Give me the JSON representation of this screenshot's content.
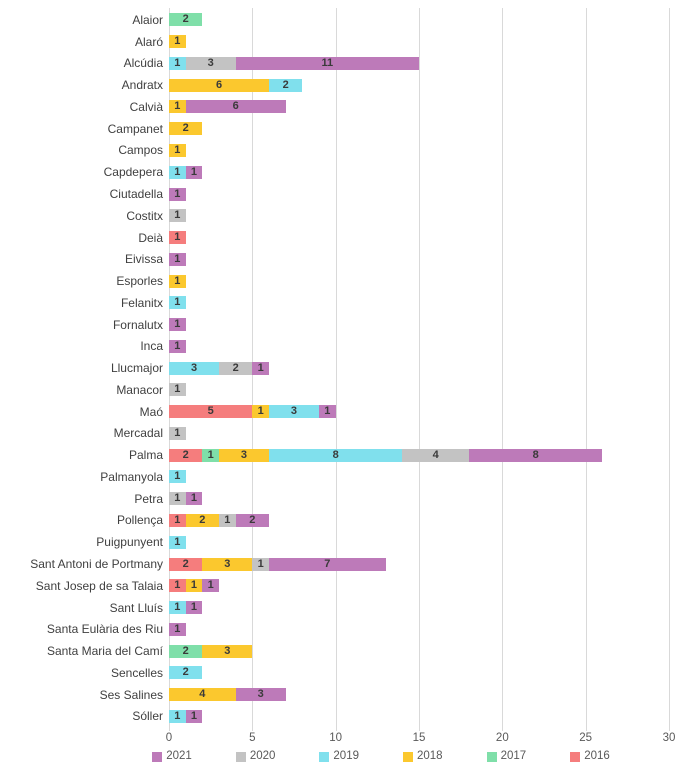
{
  "chart_data": {
    "type": "bar",
    "orientation": "horizontal",
    "stacked": true,
    "title": "",
    "xlabel": "",
    "ylabel": "",
    "xlim": [
      0,
      30
    ],
    "xticks": [
      0,
      5,
      10,
      15,
      20,
      25,
      30
    ],
    "grid": "vertical-only",
    "legend_position": "bottom",
    "gridline_color": "#d9d9d9",
    "value_label_color": "#3a3a3a",
    "category_label_color": "#404040",
    "axis_label_color": "#595959",
    "legend": [
      {
        "label": "2021",
        "color": "#bd7ab9"
      },
      {
        "label": "2020",
        "color": "#c3c3c3"
      },
      {
        "label": "2019",
        "color": "#80e0ed"
      },
      {
        "label": "2018",
        "color": "#fbc82e"
      },
      {
        "label": "2017",
        "color": "#7fdfa9"
      },
      {
        "label": "2016",
        "color": "#f57d7d"
      }
    ],
    "stack_order_left_to_right": [
      "2016",
      "2017",
      "2018",
      "2019",
      "2020",
      "2021"
    ],
    "rows": [
      {
        "category": "Alaior",
        "segments": [
          {
            "year": "2017",
            "value": 2
          }
        ]
      },
      {
        "category": "Alaró",
        "segments": [
          {
            "year": "2018",
            "value": 1
          }
        ]
      },
      {
        "category": "Alcúdia",
        "segments": [
          {
            "year": "2019",
            "value": 1
          },
          {
            "year": "2020",
            "value": 3
          },
          {
            "year": "2021",
            "value": 11
          }
        ]
      },
      {
        "category": "Andratx",
        "segments": [
          {
            "year": "2018",
            "value": 6
          },
          {
            "year": "2019",
            "value": 2
          }
        ]
      },
      {
        "category": "Calvià",
        "segments": [
          {
            "year": "2018",
            "value": 1
          },
          {
            "year": "2021",
            "value": 6
          }
        ]
      },
      {
        "category": "Campanet",
        "segments": [
          {
            "year": "2018",
            "value": 2
          }
        ]
      },
      {
        "category": "Campos",
        "segments": [
          {
            "year": "2018",
            "value": 1
          }
        ]
      },
      {
        "category": "Capdepera",
        "segments": [
          {
            "year": "2019",
            "value": 1
          },
          {
            "year": "2021",
            "value": 1
          }
        ]
      },
      {
        "category": "Ciutadella",
        "segments": [
          {
            "year": "2021",
            "value": 1
          }
        ]
      },
      {
        "category": "Costitx",
        "segments": [
          {
            "year": "2020",
            "value": 1
          }
        ]
      },
      {
        "category": "Deià",
        "segments": [
          {
            "year": "2016",
            "value": 1
          }
        ]
      },
      {
        "category": "Eivissa",
        "segments": [
          {
            "year": "2021",
            "value": 1
          }
        ]
      },
      {
        "category": "Esporles",
        "segments": [
          {
            "year": "2018",
            "value": 1
          }
        ]
      },
      {
        "category": "Felanitx",
        "segments": [
          {
            "year": "2019",
            "value": 1
          }
        ]
      },
      {
        "category": "Fornalutx",
        "segments": [
          {
            "year": "2021",
            "value": 1
          }
        ]
      },
      {
        "category": "Inca",
        "segments": [
          {
            "year": "2021",
            "value": 1
          }
        ]
      },
      {
        "category": "Llucmajor",
        "segments": [
          {
            "year": "2019",
            "value": 3
          },
          {
            "year": "2020",
            "value": 2
          },
          {
            "year": "2021",
            "value": 1
          }
        ]
      },
      {
        "category": "Manacor",
        "segments": [
          {
            "year": "2020",
            "value": 1
          }
        ]
      },
      {
        "category": "Maó",
        "segments": [
          {
            "year": "2016",
            "value": 5
          },
          {
            "year": "2018",
            "value": 1
          },
          {
            "year": "2019",
            "value": 3
          },
          {
            "year": "2021",
            "value": 1
          }
        ]
      },
      {
        "category": "Mercadal",
        "segments": [
          {
            "year": "2020",
            "value": 1
          }
        ]
      },
      {
        "category": "Palma",
        "segments": [
          {
            "year": "2016",
            "value": 2
          },
          {
            "year": "2017",
            "value": 1
          },
          {
            "year": "2018",
            "value": 3
          },
          {
            "year": "2019",
            "value": 8
          },
          {
            "year": "2020",
            "value": 4
          },
          {
            "year": "2021",
            "value": 8
          }
        ]
      },
      {
        "category": "Palmanyola",
        "segments": [
          {
            "year": "2019",
            "value": 1
          }
        ]
      },
      {
        "category": "Petra",
        "segments": [
          {
            "year": "2020",
            "value": 1
          },
          {
            "year": "2021",
            "value": 1
          }
        ]
      },
      {
        "category": "Pollença",
        "segments": [
          {
            "year": "2016",
            "value": 1
          },
          {
            "year": "2018",
            "value": 2
          },
          {
            "year": "2020",
            "value": 1
          },
          {
            "year": "2021",
            "value": 2
          }
        ]
      },
      {
        "category": "Puigpunyent",
        "segments": [
          {
            "year": "2019",
            "value": 1
          }
        ]
      },
      {
        "category": "Sant Antoni de Portmany",
        "segments": [
          {
            "year": "2016",
            "value": 2
          },
          {
            "year": "2018",
            "value": 3
          },
          {
            "year": "2020",
            "value": 1
          },
          {
            "year": "2021",
            "value": 7
          }
        ]
      },
      {
        "category": "Sant Josep de sa Talaia",
        "segments": [
          {
            "year": "2016",
            "value": 1
          },
          {
            "year": "2018",
            "value": 1
          },
          {
            "year": "2021",
            "value": 1
          }
        ]
      },
      {
        "category": "Sant Lluís",
        "segments": [
          {
            "year": "2019",
            "value": 1
          },
          {
            "year": "2021",
            "value": 1
          }
        ]
      },
      {
        "category": "Santa Eulària des Riu",
        "segments": [
          {
            "year": "2021",
            "value": 1
          }
        ]
      },
      {
        "category": "Santa Maria del Camí",
        "segments": [
          {
            "year": "2017",
            "value": 2
          },
          {
            "year": "2018",
            "value": 3
          }
        ]
      },
      {
        "category": "Sencelles",
        "segments": [
          {
            "year": "2019",
            "value": 2
          }
        ]
      },
      {
        "category": "Ses Salines",
        "segments": [
          {
            "year": "2018",
            "value": 4
          },
          {
            "year": "2021",
            "value": 3
          }
        ]
      },
      {
        "category": "Sóller",
        "segments": [
          {
            "year": "2019",
            "value": 1
          },
          {
            "year": "2021",
            "value": 1
          }
        ]
      }
    ]
  }
}
